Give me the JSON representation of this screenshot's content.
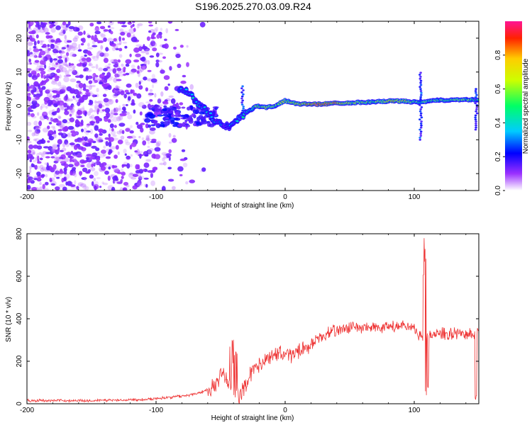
{
  "title": "S196.2025.270.03.09.R24",
  "colors": {
    "snr_line": "#ee3333",
    "axis": "#000000"
  },
  "chart_data": [
    {
      "type": "heatmap",
      "name": "spectrogram",
      "xlabel": "Height of straight line (km)",
      "ylabel": "Frequency (Hz)",
      "xlim": [
        -200,
        150
      ],
      "ylim": [
        -25,
        25
      ],
      "x_ticks": [
        -200,
        -100,
        0,
        100
      ],
      "x_tick_labels": [
        "-200",
        "-100",
        "0",
        "100"
      ],
      "y_ticks": [
        -20,
        -10,
        0,
        10,
        20
      ],
      "y_tick_labels": [
        "-20",
        "-10",
        "0",
        "10",
        "20"
      ],
      "colorbar": {
        "label": "Normalized spectral amplitude",
        "range": [
          0,
          1
        ],
        "ticks": [
          0,
          0.2,
          0.4,
          0.6,
          0.8
        ],
        "tick_labels": [
          "0.0",
          "0.2",
          "0.4",
          "0.6",
          "0.8"
        ]
      },
      "ridge": [
        {
          "x": -80,
          "f": 5,
          "a": 0.3
        },
        {
          "x": -75,
          "f": 4,
          "a": 0.35
        },
        {
          "x": -68,
          "f": 1,
          "a": 0.35
        },
        {
          "x": -62,
          "f": -1,
          "a": 0.3
        },
        {
          "x": -55,
          "f": -4,
          "a": 0.3
        },
        {
          "x": -48,
          "f": -6,
          "a": 0.3
        },
        {
          "x": -42,
          "f": -6,
          "a": 0.3
        },
        {
          "x": -36,
          "f": -3.5,
          "a": 0.35
        },
        {
          "x": -30,
          "f": -2,
          "a": 0.4
        },
        {
          "x": -22,
          "f": 0,
          "a": 0.55
        },
        {
          "x": -15,
          "f": -0.5,
          "a": 0.6
        },
        {
          "x": -8,
          "f": 0,
          "a": 0.55
        },
        {
          "x": 0,
          "f": 1.5,
          "a": 0.6
        },
        {
          "x": 10,
          "f": 0.6,
          "a": 0.7
        },
        {
          "x": 25,
          "f": 0.5,
          "a": 0.95
        },
        {
          "x": 40,
          "f": 0.8,
          "a": 0.85
        },
        {
          "x": 55,
          "f": 1.0,
          "a": 0.6
        },
        {
          "x": 70,
          "f": 1.2,
          "a": 0.55
        },
        {
          "x": 85,
          "f": 1.5,
          "a": 0.75
        },
        {
          "x": 95,
          "f": 1.3,
          "a": 0.6
        },
        {
          "x": 105,
          "f": 1.0,
          "a": 0.5
        },
        {
          "x": 115,
          "f": 1.6,
          "a": 0.5
        },
        {
          "x": 130,
          "f": 1.8,
          "a": 0.55
        },
        {
          "x": 148,
          "f": 1.8,
          "a": 0.5
        }
      ]
    },
    {
      "type": "line",
      "name": "snr",
      "xlabel": "Height of straight line (km)",
      "ylabel": "SNR (10 * v/v)",
      "xlim": [
        -200,
        150
      ],
      "ylim": [
        0,
        800
      ],
      "x_ticks": [
        -200,
        -100,
        0,
        100
      ],
      "x_tick_labels": [
        "-200",
        "-100",
        "0",
        "100"
      ],
      "y_ticks": [
        0,
        200,
        400,
        600,
        800
      ],
      "y_tick_labels": [
        "0",
        "200",
        "400",
        "600",
        "800"
      ],
      "envelope": [
        {
          "x": -200,
          "y": 15
        },
        {
          "x": -150,
          "y": 15
        },
        {
          "x": -110,
          "y": 20
        },
        {
          "x": -90,
          "y": 30
        },
        {
          "x": -75,
          "y": 40
        },
        {
          "x": -65,
          "y": 55
        },
        {
          "x": -55,
          "y": 80
        },
        {
          "x": -48,
          "y": 150
        },
        {
          "x": -42,
          "y": 70
        },
        {
          "x": -36,
          "y": 30
        },
        {
          "x": -30,
          "y": 100
        },
        {
          "x": -25,
          "y": 160
        },
        {
          "x": -15,
          "y": 200
        },
        {
          "x": -5,
          "y": 240
        },
        {
          "x": 5,
          "y": 230
        },
        {
          "x": 15,
          "y": 260
        },
        {
          "x": 25,
          "y": 300
        },
        {
          "x": 35,
          "y": 340
        },
        {
          "x": 50,
          "y": 360
        },
        {
          "x": 70,
          "y": 355
        },
        {
          "x": 90,
          "y": 365
        },
        {
          "x": 100,
          "y": 350
        },
        {
          "x": 108,
          "y": 300
        },
        {
          "x": 115,
          "y": 330
        },
        {
          "x": 130,
          "y": 330
        },
        {
          "x": 145,
          "y": 330
        },
        {
          "x": 150,
          "y": 330
        }
      ],
      "features": [
        {
          "x": -40,
          "y": 340
        },
        {
          "x": 108,
          "y": 800
        },
        {
          "x": 110,
          "y": 40
        },
        {
          "x": 148,
          "y": 0
        }
      ]
    }
  ]
}
